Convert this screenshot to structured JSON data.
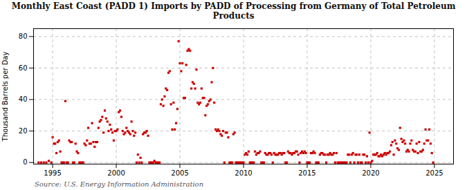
{
  "chart_data": {
    "type": "scatter",
    "title": "Monthly East Coast (PADD 1) Imports by PADD of Processing from Germany of Total Petroleum\nProducts",
    "ylabel": "Thousand Barrels per Day",
    "caption": "Source: U.S. Energy Information Administration",
    "color": "#CC0000",
    "marker": "square",
    "grid": true,
    "xlim": [
      1993.5,
      2026.5
    ],
    "ylim": [
      -1,
      85
    ],
    "xticks": [
      1995,
      2000,
      2005,
      2010,
      2015,
      2020,
      2025
    ],
    "yticks": [
      0,
      20,
      40,
      60,
      80
    ],
    "x": [
      1993.9,
      1994.1,
      1994.3,
      1994.5,
      1994.7,
      1994.9,
      1995.0,
      1995.1,
      1995.2,
      1995.3,
      1995.4,
      1995.5,
      1995.6,
      1995.7,
      1995.8,
      1995.9,
      1996.0,
      1996.1,
      1996.2,
      1996.3,
      1996.4,
      1996.5,
      1996.6,
      1996.7,
      1996.8,
      1996.9,
      1997.0,
      1997.1,
      1997.2,
      1997.3,
      1997.4,
      1997.5,
      1997.6,
      1997.7,
      1997.8,
      1997.9,
      1998.0,
      1998.1,
      1998.2,
      1998.3,
      1998.4,
      1998.5,
      1998.6,
      1998.7,
      1998.8,
      1998.9,
      1999.0,
      1999.1,
      1999.2,
      1999.3,
      1999.4,
      1999.5,
      1999.6,
      1999.7,
      1999.8,
      1999.9,
      2000.0,
      2000.1,
      2000.2,
      2000.3,
      2000.4,
      2000.5,
      2000.6,
      2000.7,
      2000.8,
      2000.9,
      2001.0,
      2001.1,
      2001.2,
      2001.3,
      2001.4,
      2001.5,
      2001.6,
      2001.7,
      2001.8,
      2001.9,
      2002.0,
      2002.1,
      2002.2,
      2002.3,
      2002.4,
      2002.5,
      2002.6,
      2002.7,
      2002.8,
      2002.9,
      2003.0,
      2003.1,
      2003.2,
      2003.3,
      2003.4,
      2003.5,
      2003.6,
      2003.7,
      2003.8,
      2003.9,
      2004.0,
      2004.1,
      2004.2,
      2004.3,
      2004.4,
      2004.5,
      2004.6,
      2004.7,
      2004.8,
      2004.9,
      2005.0,
      2005.1,
      2005.2,
      2005.3,
      2005.4,
      2005.5,
      2005.6,
      2005.7,
      2005.8,
      2005.9,
      2006.0,
      2006.1,
      2006.2,
      2006.3,
      2006.4,
      2006.5,
      2006.6,
      2006.7,
      2006.8,
      2006.9,
      2007.0,
      2007.1,
      2007.2,
      2007.3,
      2007.4,
      2007.5,
      2007.6,
      2007.7,
      2007.8,
      2007.9,
      2008.0,
      2008.1,
      2008.2,
      2008.3,
      2008.4,
      2008.5,
      2008.6,
      2008.7,
      2008.8,
      2008.9,
      2009.0,
      2009.1,
      2009.2,
      2009.3,
      2009.4,
      2009.5,
      2009.6,
      2009.7,
      2009.8,
      2009.9,
      2010.0,
      2010.1,
      2010.2,
      2010.3,
      2010.4,
      2010.5,
      2010.6,
      2010.7,
      2010.8,
      2010.9,
      2011.0,
      2011.1,
      2011.2,
      2011.3,
      2011.4,
      2011.5,
      2011.6,
      2011.7,
      2011.8,
      2011.9,
      2012.0,
      2012.1,
      2012.2,
      2012.3,
      2012.4,
      2012.5,
      2012.6,
      2012.7,
      2012.8,
      2012.9,
      2013.0,
      2013.1,
      2013.2,
      2013.3,
      2013.4,
      2013.5,
      2013.6,
      2013.7,
      2013.8,
      2013.9,
      2014.0,
      2014.1,
      2014.2,
      2014.3,
      2014.4,
      2014.5,
      2014.6,
      2014.7,
      2014.8,
      2014.9,
      2015.0,
      2015.1,
      2015.2,
      2015.3,
      2015.4,
      2015.5,
      2015.6,
      2015.7,
      2015.8,
      2015.9,
      2016.0,
      2016.1,
      2016.2,
      2016.3,
      2016.4,
      2016.5,
      2016.6,
      2016.7,
      2016.8,
      2016.9,
      2017.0,
      2017.1,
      2017.2,
      2017.3,
      2017.4,
      2017.5,
      2017.6,
      2017.7,
      2017.8,
      2017.9,
      2018.0,
      2018.1,
      2018.2,
      2018.3,
      2018.4,
      2018.5,
      2018.6,
      2018.7,
      2018.8,
      2018.9,
      2019.0,
      2019.1,
      2019.2,
      2019.3,
      2019.4,
      2019.5,
      2019.6,
      2019.7,
      2019.8,
      2019.9,
      2020.0,
      2020.1,
      2020.2,
      2020.3,
      2020.4,
      2020.5,
      2020.6,
      2020.7,
      2020.8,
      2020.9,
      2021.0,
      2021.1,
      2021.2,
      2021.3,
      2021.4,
      2021.5,
      2021.6,
      2021.7,
      2021.8,
      2021.9,
      2022.0,
      2022.1,
      2022.2,
      2022.3,
      2022.4,
      2022.5,
      2022.6,
      2022.7,
      2022.8,
      2022.9,
      2023.0,
      2023.1,
      2023.2,
      2023.3,
      2023.4,
      2023.5,
      2023.6,
      2023.7,
      2023.8,
      2023.9,
      2024.0,
      2024.1,
      2024.2,
      2024.3,
      2024.4,
      2024.5,
      2024.6,
      2024.7,
      2024.8,
      2024.9
    ],
    "values": [
      0,
      0,
      0,
      0,
      1,
      0,
      16,
      12,
      12,
      6,
      13,
      14,
      7,
      0,
      0,
      0,
      39,
      0,
      0,
      14,
      13,
      13,
      0,
      0,
      12,
      7,
      6,
      0,
      0,
      0,
      0,
      12,
      11,
      14,
      22,
      12,
      12,
      25,
      13,
      10,
      13,
      13,
      22,
      26,
      27,
      29,
      19,
      33,
      28,
      26,
      20,
      24,
      21,
      19,
      14,
      20,
      20,
      21,
      32,
      33,
      29,
      20,
      18,
      19,
      22,
      20,
      19,
      18,
      26,
      20,
      17,
      19,
      0,
      5,
      0,
      3,
      0,
      18,
      19,
      19,
      20,
      17,
      0,
      0,
      0,
      0,
      1,
      0,
      0,
      0,
      0,
      37,
      40,
      36,
      42,
      47,
      46,
      57,
      58,
      37,
      21,
      38,
      21,
      25,
      34,
      77,
      63,
      58,
      63,
      41,
      41,
      62,
      71,
      72,
      71,
      47,
      51,
      50,
      47,
      59,
      38,
      37,
      38,
      47,
      41,
      41,
      30,
      36,
      37,
      39,
      40,
      51,
      60,
      38,
      21,
      20,
      21,
      20,
      18,
      17,
      20,
      0,
      19,
      19,
      16,
      0,
      0,
      0,
      18,
      19,
      0,
      0,
      0,
      0,
      0,
      0,
      0,
      5,
      6,
      5,
      7,
      0,
      0,
      0,
      0,
      7,
      5,
      6,
      6,
      7,
      0,
      0,
      0,
      6,
      5,
      5,
      6,
      6,
      5,
      0,
      6,
      5,
      5,
      5,
      6,
      6,
      5,
      6,
      6,
      0,
      0,
      7,
      6,
      6,
      5,
      6,
      6,
      7,
      7,
      5,
      0,
      6,
      7,
      6,
      7,
      6,
      0,
      0,
      0,
      6,
      6,
      7,
      6,
      0,
      0,
      0,
      5,
      6,
      6,
      5,
      5,
      0,
      5,
      5,
      6,
      5,
      5,
      6,
      0,
      6,
      0,
      0,
      0,
      0,
      0,
      0,
      0,
      0,
      5,
      5,
      0,
      5,
      6,
      0,
      5,
      5,
      0,
      5,
      0,
      0,
      5,
      5,
      0,
      4,
      0,
      19,
      0,
      1,
      5,
      5,
      5,
      6,
      4,
      4,
      5,
      4,
      5,
      6,
      5,
      6,
      6,
      7,
      11,
      13,
      5,
      14,
      12,
      9,
      8,
      22,
      15,
      13,
      14,
      12,
      7,
      8,
      7,
      12,
      14,
      8,
      7,
      7,
      12,
      6,
      13,
      7,
      7,
      8,
      12,
      21,
      14,
      14,
      21,
      12,
      6,
      0
    ]
  }
}
